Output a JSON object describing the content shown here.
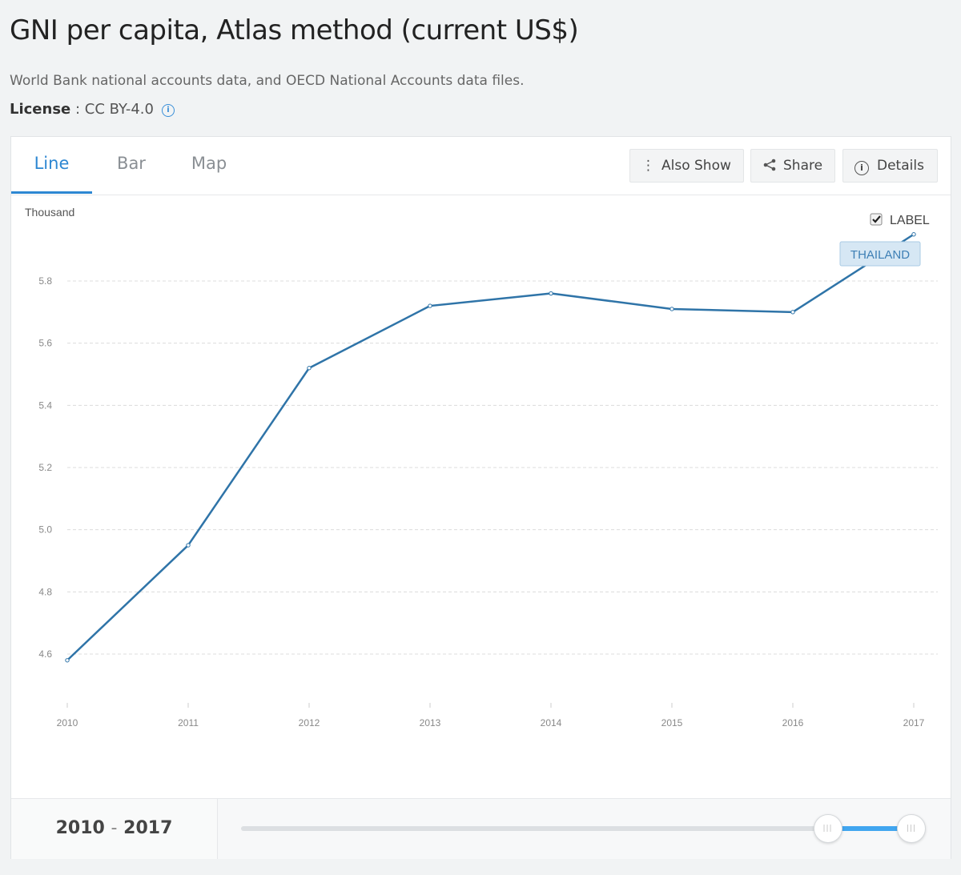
{
  "header": {
    "title": "GNI per capita, Atlas method (current US$)",
    "source": "World Bank national accounts data, and OECD National Accounts data files.",
    "license_label": "License",
    "license_value": "CC BY-4.0"
  },
  "tabs": [
    {
      "label": "Line",
      "active": true
    },
    {
      "label": "Bar",
      "active": false
    },
    {
      "label": "Map",
      "active": false
    }
  ],
  "toolbar": {
    "also_show": "Also Show",
    "share": "Share",
    "details": "Details"
  },
  "legend": {
    "label_toggle": "LABEL",
    "label_checked": true
  },
  "range": {
    "start": "2010",
    "end": "2017",
    "separator": "-",
    "selection_start_fraction": 0.875,
    "selection_end_fraction": 1.0
  },
  "colors": {
    "line": "#2f74a8",
    "accent": "#2d87d2",
    "slider": "#41a6f0"
  },
  "chart_data": {
    "type": "line",
    "ylabel": "Thousand",
    "x": [
      2010,
      2011,
      2012,
      2013,
      2014,
      2015,
      2016,
      2017
    ],
    "series": [
      {
        "name": "THAILAND",
        "values": [
          4.58,
          4.95,
          5.52,
          5.72,
          5.76,
          5.71,
          5.7,
          5.95
        ]
      }
    ],
    "yticks": [
      4.6,
      4.8,
      5.0,
      5.2,
      5.4,
      5.6,
      5.8
    ],
    "ytick_labels": [
      "4.6",
      "4.8",
      "5.0",
      "5.2",
      "5.4",
      "5.6",
      "5.8"
    ],
    "xtick_labels": [
      "2010",
      "2011",
      "2012",
      "2013",
      "2014",
      "2015",
      "2016",
      "2017"
    ],
    "grid": true,
    "legend": "top-right"
  }
}
